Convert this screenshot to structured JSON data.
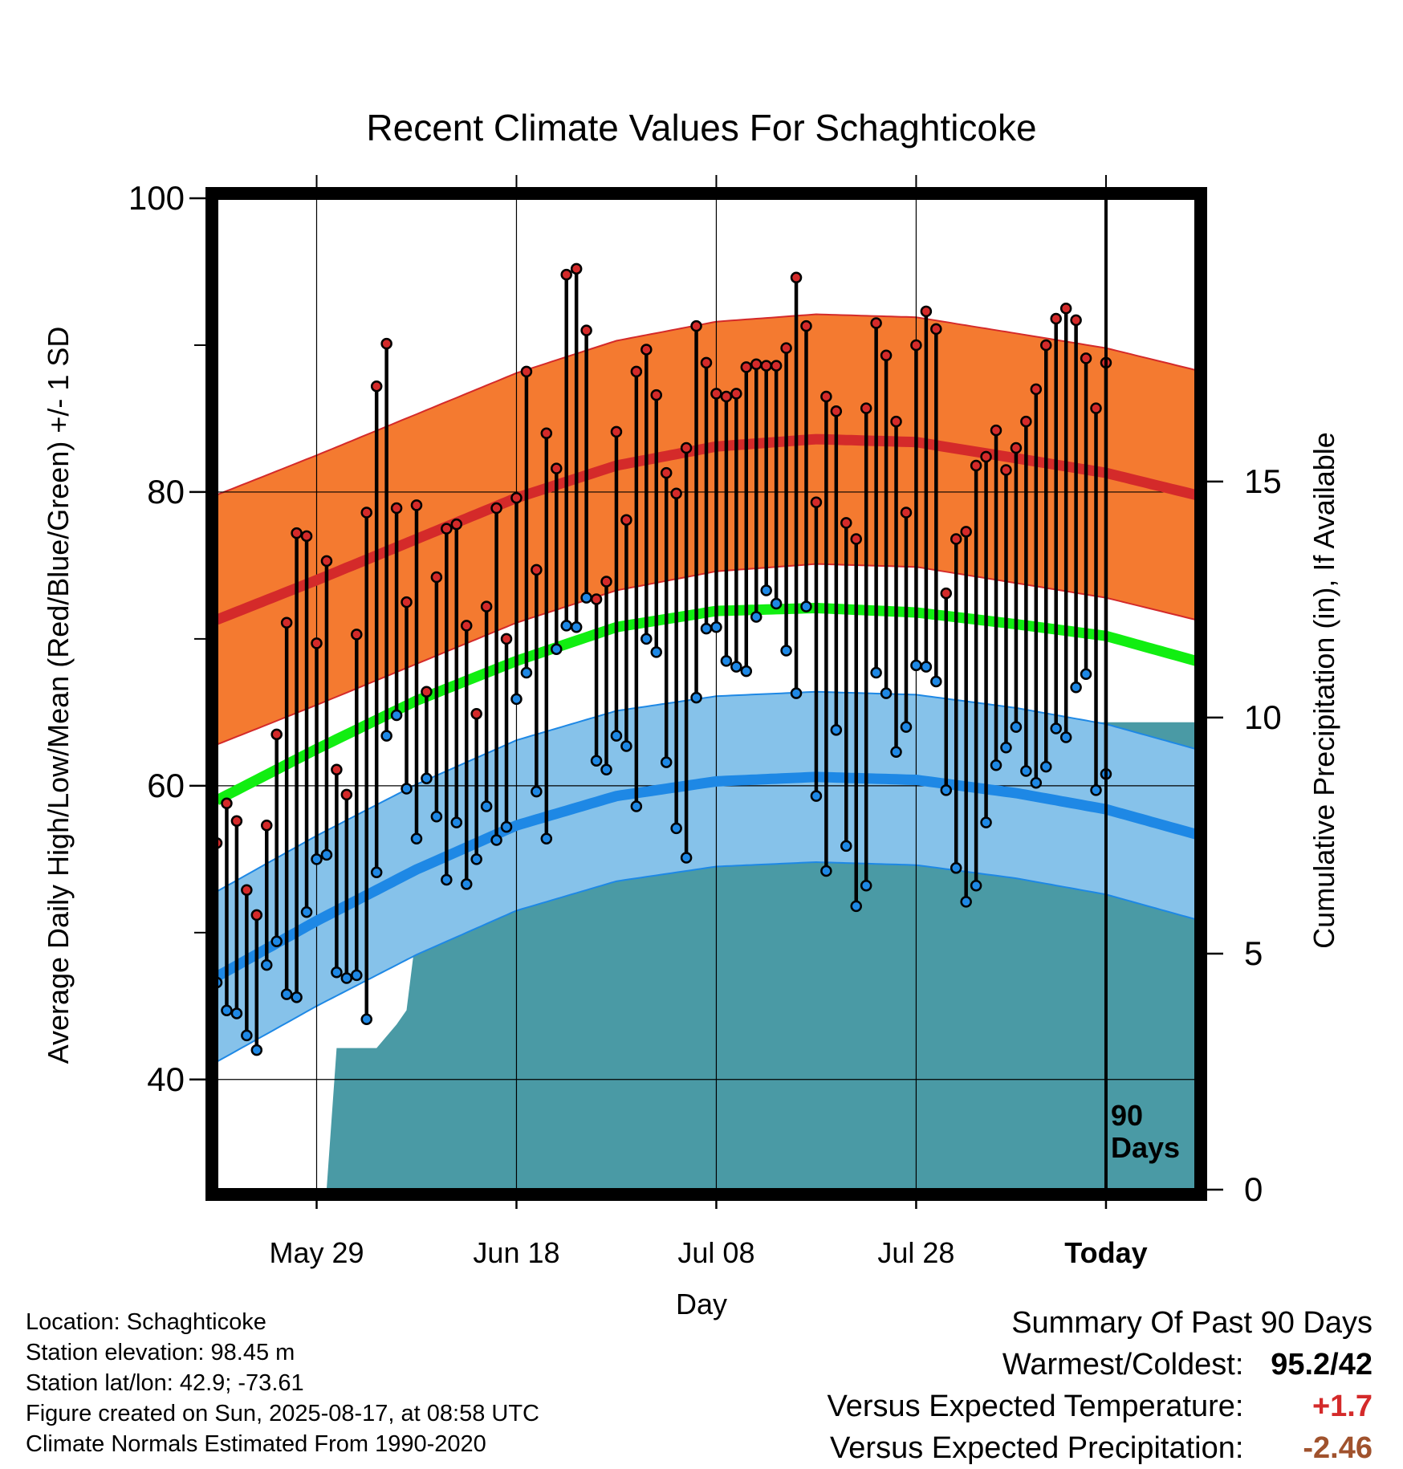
{
  "chart_data": {
    "type": "line",
    "title": "Recent Climate Values For Schaghticoke",
    "ylabel": "Average Daily High/Low/Mean (Red/Blue/Green) +/- 1 SD",
    "y2label": "Cumulative Precipitation (in), If Available",
    "xlabel": "Day",
    "ylim": [
      32.5,
      100
    ],
    "y2lim": [
      0,
      21
    ],
    "yticks": [
      40,
      60,
      80,
      100
    ],
    "y2ticks": [
      0,
      5,
      10,
      15
    ],
    "x_range_days": [
      -89,
      9
    ],
    "x_tick_labels": [
      {
        "day": -79,
        "label": "May 29"
      },
      {
        "day": -59,
        "label": "Jun 18"
      },
      {
        "day": -39,
        "label": "Jul 08"
      },
      {
        "day": -19,
        "label": "Jul 28"
      },
      {
        "day": 0,
        "label": "Today"
      }
    ],
    "today_label": "90 Days",
    "normals": {
      "days": [
        -89,
        -79,
        -69,
        -59,
        -49,
        -39,
        -29,
        -19,
        -9,
        0,
        9
      ],
      "high_mean": [
        71.3,
        74.0,
        76.8,
        79.6,
        81.8,
        83.1,
        83.6,
        83.4,
        82.3,
        81.3,
        79.8
      ],
      "high_sd": 8.5,
      "mean": [
        59.0,
        62.5,
        65.8,
        68.5,
        70.8,
        71.9,
        72.1,
        71.8,
        71.0,
        70.2,
        68.5
      ],
      "low_mean": [
        47.0,
        50.8,
        54.3,
        57.3,
        59.3,
        60.3,
        60.6,
        60.4,
        59.5,
        58.4,
        56.7
      ],
      "low_sd": 5.8
    },
    "series": [
      {
        "name": "High",
        "color": "#d42a2a",
        "values": [
          56.1,
          58.8,
          57.6,
          52.9,
          51.2,
          57.3,
          63.5,
          71.1,
          77.2,
          77.0,
          69.7,
          75.3,
          61.1,
          59.4,
          70.3,
          78.6,
          87.2,
          90.1,
          78.9,
          72.5,
          79.1,
          66.4,
          74.2,
          77.5,
          77.8,
          70.9,
          64.9,
          72.2,
          78.9,
          70.0,
          79.6,
          88.2,
          74.7,
          84.0,
          81.6,
          94.8,
          95.2,
          91.0,
          72.7,
          73.9,
          84.1,
          78.1,
          88.2,
          89.7,
          86.6,
          81.3,
          79.9,
          83.0,
          91.3,
          88.8,
          86.7,
          86.5,
          86.7,
          88.5,
          88.7,
          88.6,
          88.6,
          89.8,
          94.6,
          91.3,
          79.3,
          86.5,
          85.5,
          77.9,
          76.8,
          85.7,
          91.5,
          89.3,
          84.8,
          78.6,
          90.0,
          92.3,
          91.1,
          73.1,
          76.8,
          77.3,
          81.8,
          82.4,
          84.2,
          81.5,
          83.0,
          84.8,
          87.0,
          90.0,
          91.8,
          92.5,
          91.7,
          89.1,
          85.7,
          88.8
        ]
      },
      {
        "name": "Low",
        "color": "#1e88e5",
        "values": [
          46.6,
          44.7,
          44.5,
          43.0,
          42.0,
          47.8,
          49.4,
          45.8,
          45.6,
          51.4,
          55.0,
          55.3,
          47.3,
          46.9,
          47.1,
          44.1,
          54.1,
          63.4,
          64.8,
          59.8,
          56.4,
          60.5,
          57.9,
          53.6,
          57.5,
          53.3,
          55.0,
          58.6,
          56.3,
          57.2,
          65.9,
          67.7,
          59.6,
          56.4,
          69.3,
          70.9,
          70.8,
          72.8,
          61.7,
          61.1,
          63.4,
          62.7,
          58.6,
          70.0,
          69.1,
          61.6,
          57.1,
          55.1,
          66.0,
          70.7,
          70.8,
          68.5,
          68.1,
          67.8,
          71.5,
          73.3,
          72.4,
          69.2,
          66.3,
          72.2,
          59.3,
          54.2,
          63.8,
          55.9,
          51.8,
          53.2,
          67.7,
          66.3,
          62.3,
          64.0,
          68.2,
          68.1,
          67.1,
          59.7,
          54.4,
          52.1,
          53.2,
          57.5,
          61.4,
          62.6,
          64.0,
          61.0,
          60.2,
          61.3,
          63.9,
          63.3,
          66.7,
          67.6,
          59.7,
          60.8
        ]
      },
      {
        "name": "Cumulative Precipitation",
        "color": "#4a9aa5",
        "points": [
          [
            -78,
            0
          ],
          [
            -77,
            3.0
          ],
          [
            -73,
            3.0
          ],
          [
            -71,
            3.5
          ],
          [
            -70,
            3.8
          ],
          [
            -69,
            5.5
          ],
          [
            -68,
            5.5
          ],
          [
            -66,
            5.8
          ],
          [
            -63,
            5.8
          ],
          [
            -62,
            6.1
          ],
          [
            -60,
            6.1
          ],
          [
            -59,
            6.5
          ],
          [
            -58,
            6.8
          ],
          [
            -55,
            6.8
          ],
          [
            -54,
            7.0
          ],
          [
            -48,
            7.0
          ],
          [
            -47,
            7.2
          ],
          [
            -45,
            7.2
          ],
          [
            -44,
            7.5
          ],
          [
            -36,
            7.5
          ],
          [
            -35,
            7.6
          ],
          [
            -30,
            7.6
          ],
          [
            -29,
            7.9
          ],
          [
            -25,
            7.9
          ],
          [
            -24,
            8.0
          ],
          [
            -22,
            8.0
          ],
          [
            -21,
            9.2
          ],
          [
            -18,
            9.2
          ],
          [
            -17,
            9.9
          ],
          [
            -9,
            9.9
          ],
          [
            -8,
            9.9
          ],
          [
            9,
            9.9
          ]
        ]
      }
    ]
  },
  "footer": {
    "location": "Location: Schaghticoke",
    "elevation": "Station elevation: 98.45 m",
    "latlon": "Station lat/lon: 42.9; -73.61",
    "created": "Figure created on Sun, 2025-08-17, at 08:58 UTC",
    "normals": "Climate Normals Estimated From 1990-2020"
  },
  "summary": {
    "title": "Summary Of Past 90 Days",
    "warm_cold_label": "Warmest/Coldest:",
    "warm_value": "95.2",
    "slash": "/",
    "cold_value": "42",
    "temp_label": "Versus Expected Temperature:",
    "temp_value": "+1.7",
    "temp_color": "#d42a2a",
    "precip_label": "Versus Expected Precipitation:",
    "precip_value": "-2.46",
    "precip_color": "#a0522d"
  },
  "colors": {
    "high_band": "#f47a30",
    "high_line": "#d42a2a",
    "mean_line": "#11ee11",
    "low_band": "#86c2ea",
    "low_line": "#1e88e5",
    "precip_fill": "#4a9aa5",
    "point_stroke": "#000000"
  }
}
